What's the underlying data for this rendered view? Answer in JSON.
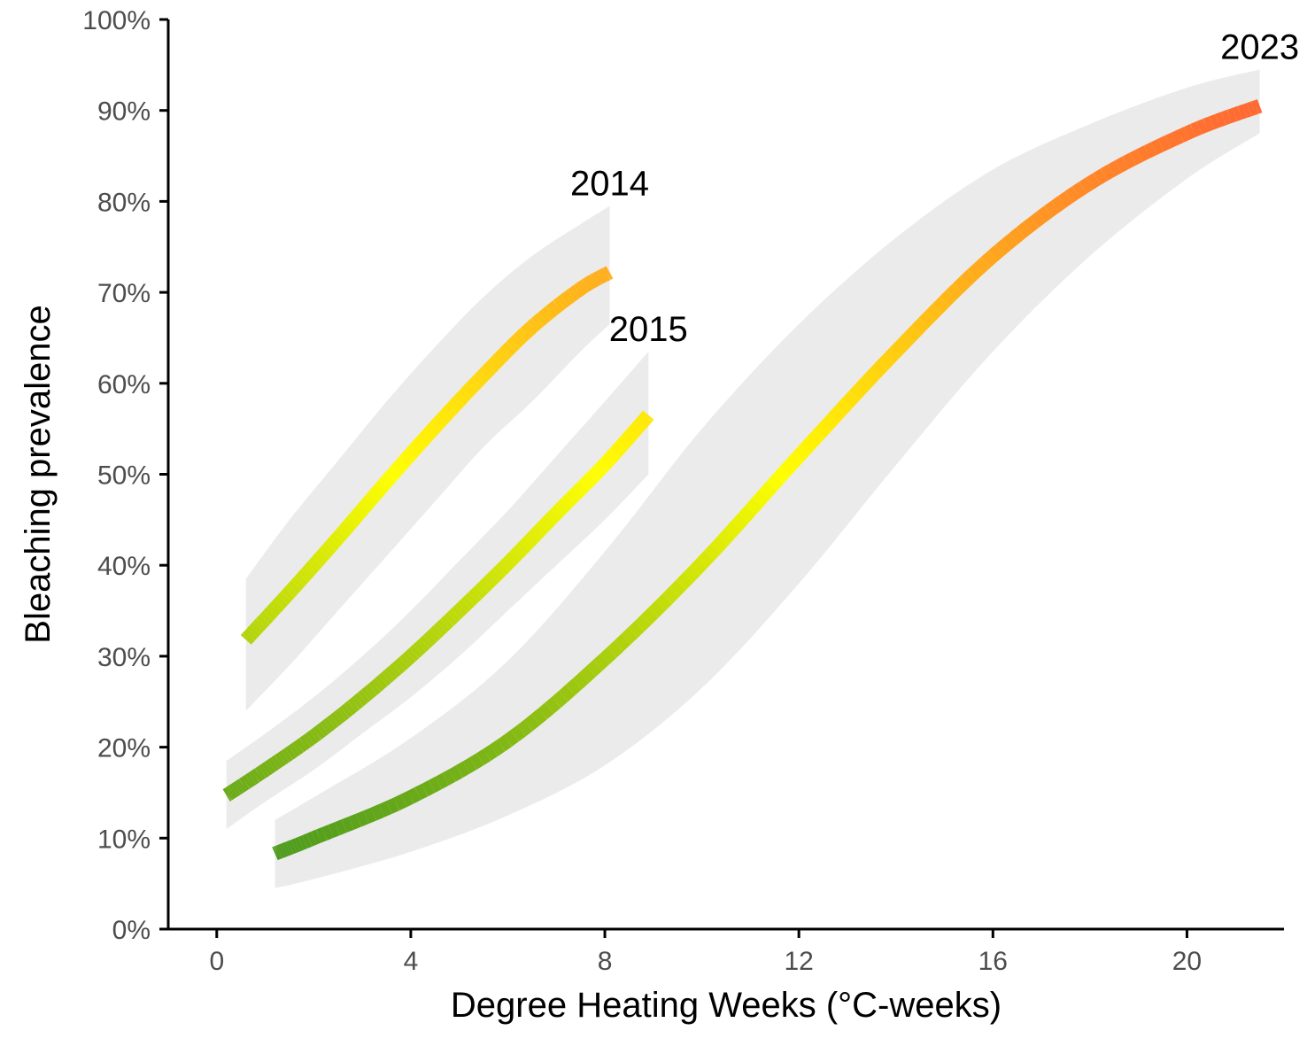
{
  "chart_data": {
    "type": "line",
    "title": "",
    "xlabel": "Degree Heating Weeks (°C-weeks)",
    "ylabel": "Bleaching prevalence",
    "xlim": [
      -1,
      22
    ],
    "ylim": [
      0,
      1
    ],
    "x_ticks": [
      0,
      4,
      8,
      12,
      16,
      20
    ],
    "x_tick_labels": [
      "0",
      "4",
      "8",
      "12",
      "16",
      "20"
    ],
    "y_ticks": [
      0,
      0.1,
      0.2,
      0.3,
      0.4,
      0.5,
      0.6,
      0.7,
      0.8,
      0.9,
      1.0
    ],
    "y_tick_labels": [
      "0%",
      "10%",
      "20%",
      "30%",
      "40%",
      "50%",
      "60%",
      "70%",
      "80%",
      "90%",
      "100%"
    ],
    "grid": false,
    "legend": "none",
    "line_color_scale": {
      "low": "#4d9a1e",
      "mid": "#ffff00",
      "high": "#ff6633",
      "domain": [
        0.08,
        0.5,
        0.91
      ]
    },
    "band_color": "#ebebeb",
    "series": [
      {
        "name": "2014",
        "x": [
          0.6,
          1.5,
          2.5,
          3.5,
          4.5,
          5.5,
          6.5,
          7.5,
          8.1
        ],
        "y": [
          0.318,
          0.37,
          0.43,
          0.492,
          0.552,
          0.609,
          0.662,
          0.704,
          0.722
        ],
        "lower": [
          0.24,
          0.29,
          0.35,
          0.41,
          0.47,
          0.53,
          0.58,
          0.635,
          0.665
        ],
        "upper": [
          0.385,
          0.45,
          0.515,
          0.58,
          0.64,
          0.695,
          0.74,
          0.775,
          0.795
        ]
      },
      {
        "name": "2015",
        "x": [
          0.2,
          1,
          2,
          3,
          4,
          5,
          6,
          7,
          8,
          8.9
        ],
        "y": [
          0.147,
          0.175,
          0.212,
          0.254,
          0.3,
          0.35,
          0.402,
          0.457,
          0.511,
          0.565
        ],
        "lower": [
          0.11,
          0.14,
          0.175,
          0.215,
          0.255,
          0.3,
          0.35,
          0.4,
          0.45,
          0.5
        ],
        "upper": [
          0.185,
          0.215,
          0.255,
          0.3,
          0.35,
          0.405,
          0.46,
          0.52,
          0.58,
          0.635
        ]
      },
      {
        "name": "2023",
        "x": [
          1.2,
          2,
          4,
          6,
          8,
          10,
          12,
          14,
          16,
          18,
          20,
          21.5
        ],
        "y": [
          0.083,
          0.1,
          0.145,
          0.207,
          0.297,
          0.402,
          0.52,
          0.635,
          0.74,
          0.82,
          0.875,
          0.905
        ],
        "lower": [
          0.045,
          0.055,
          0.085,
          0.125,
          0.18,
          0.265,
          0.38,
          0.51,
          0.635,
          0.74,
          0.825,
          0.875
        ],
        "upper": [
          0.12,
          0.145,
          0.21,
          0.295,
          0.415,
          0.55,
          0.665,
          0.76,
          0.835,
          0.885,
          0.925,
          0.945
        ]
      }
    ]
  }
}
